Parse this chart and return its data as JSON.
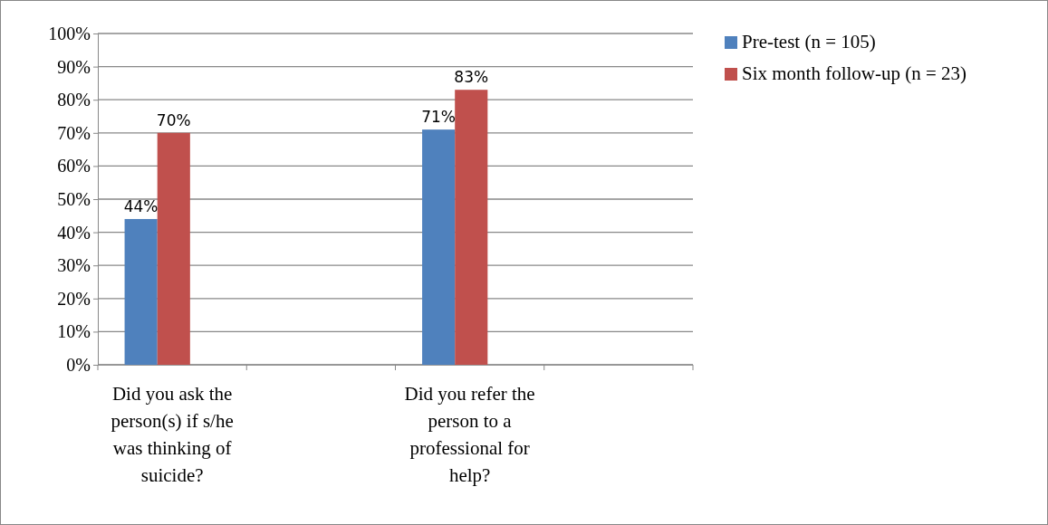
{
  "chart_data": {
    "type": "bar",
    "categories": [
      "Did you ask the person(s) if s/he was thinking of suicide?",
      null,
      "Did you refer the person to a professional for help?",
      null
    ],
    "series": [
      {
        "name": "Pre-test (n = 105)",
        "color": "#4f81bd",
        "values": [
          44,
          null,
          71,
          null
        ],
        "value_labels": [
          "44%",
          null,
          "71%",
          null
        ]
      },
      {
        "name": "Six month follow-up (n = 23)",
        "color": "#c0504d",
        "values": [
          70,
          null,
          83,
          null
        ],
        "value_labels": [
          "70%",
          null,
          "83%",
          null
        ]
      }
    ],
    "ylim": [
      0,
      100
    ],
    "yticks": [
      {
        "value": 0,
        "label": "0%"
      },
      {
        "value": 10,
        "label": "10%"
      },
      {
        "value": 20,
        "label": "20%"
      },
      {
        "value": 30,
        "label": "30%"
      },
      {
        "value": 40,
        "label": "40%"
      },
      {
        "value": 50,
        "label": "50%"
      },
      {
        "value": 60,
        "label": "60%"
      },
      {
        "value": 70,
        "label": "70%"
      },
      {
        "value": 80,
        "label": "80%"
      },
      {
        "value": 90,
        "label": "90%"
      },
      {
        "value": 100,
        "label": "100%"
      }
    ],
    "grid": "y",
    "legend": "top right"
  }
}
